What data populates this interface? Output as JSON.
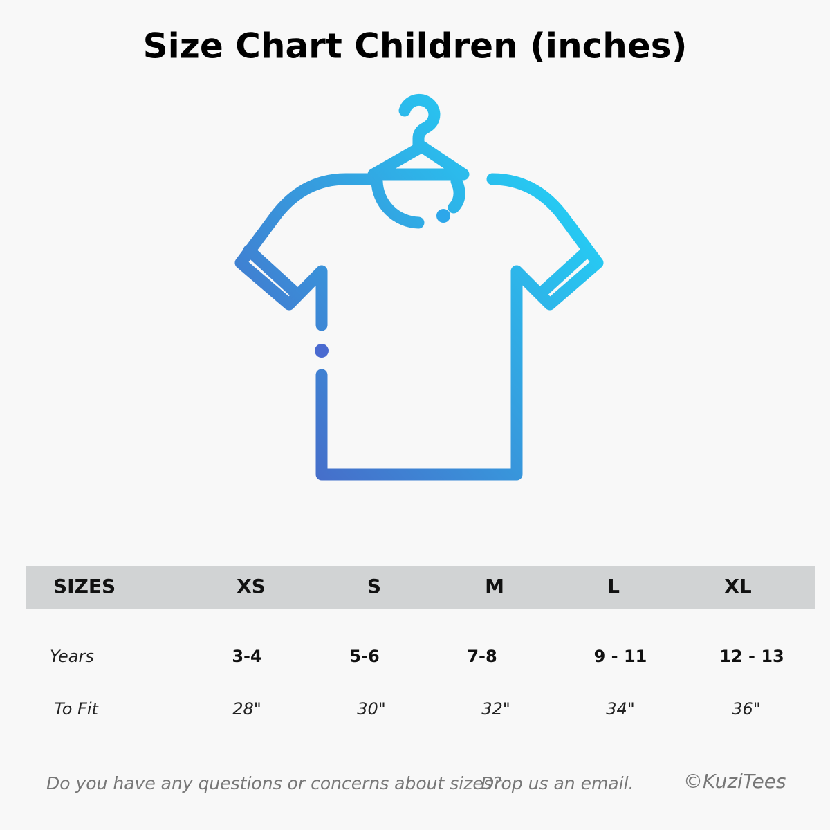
{
  "title": "Size Chart Children (inches)",
  "table": {
    "header": [
      "SIZES",
      "XS",
      "S",
      "M",
      "L",
      "XL"
    ],
    "rows": [
      [
        "Years",
        "3-4",
        "5-6",
        "7-8",
        "9 - 11",
        "12 - 13"
      ],
      [
        "To Fit",
        "28\"",
        "30\"",
        "32\"",
        "34\"",
        "36\""
      ]
    ]
  },
  "footer": {
    "question": "Do you have any questions or concerns about sizes?",
    "email": "Drop us an email.",
    "brand": "©KuziTees"
  }
}
